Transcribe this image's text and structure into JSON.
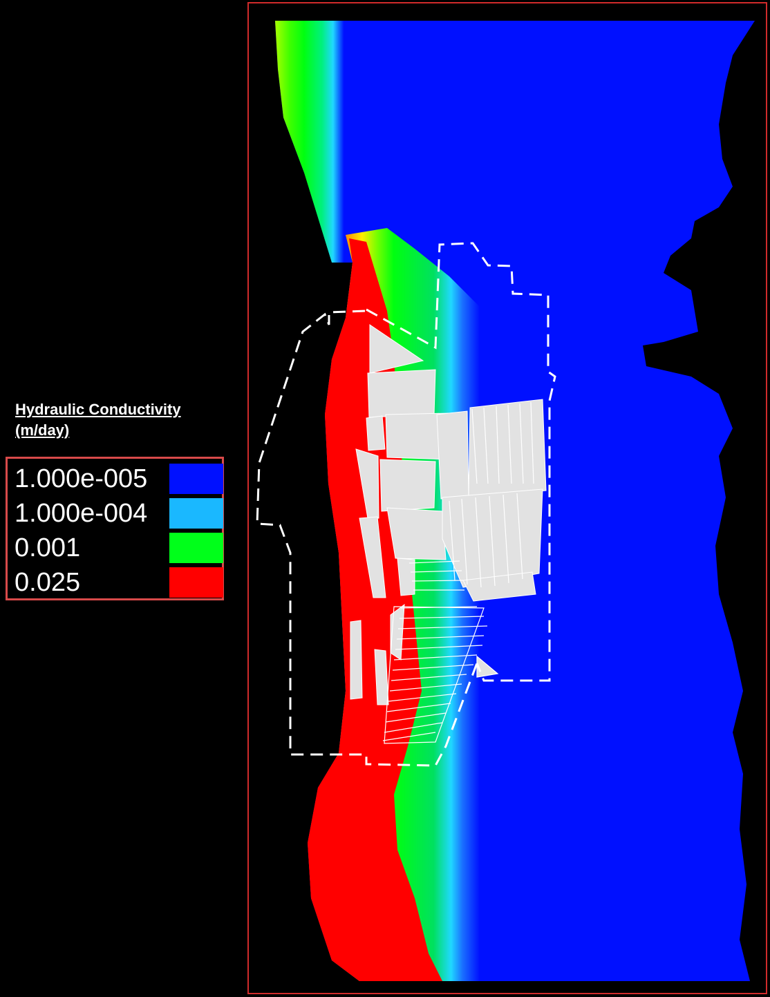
{
  "legend": {
    "title_line1": "Hydraulic Conductivity",
    "title_line2": "(m/day)",
    "entries": [
      {
        "label": "1.000e-005",
        "color": "#0010ff"
      },
      {
        "label": "1.000e-004",
        "color": "#1ab8ff"
      },
      {
        "label": "0.001",
        "color": "#00ff1a"
      },
      {
        "label": "0.025",
        "color": "#ff0000"
      }
    ]
  },
  "map": {
    "background": "#000000",
    "frame_color": "#d12b2b",
    "boundary_color": "#ffffff",
    "feature_fill": "#e2e2e2"
  }
}
